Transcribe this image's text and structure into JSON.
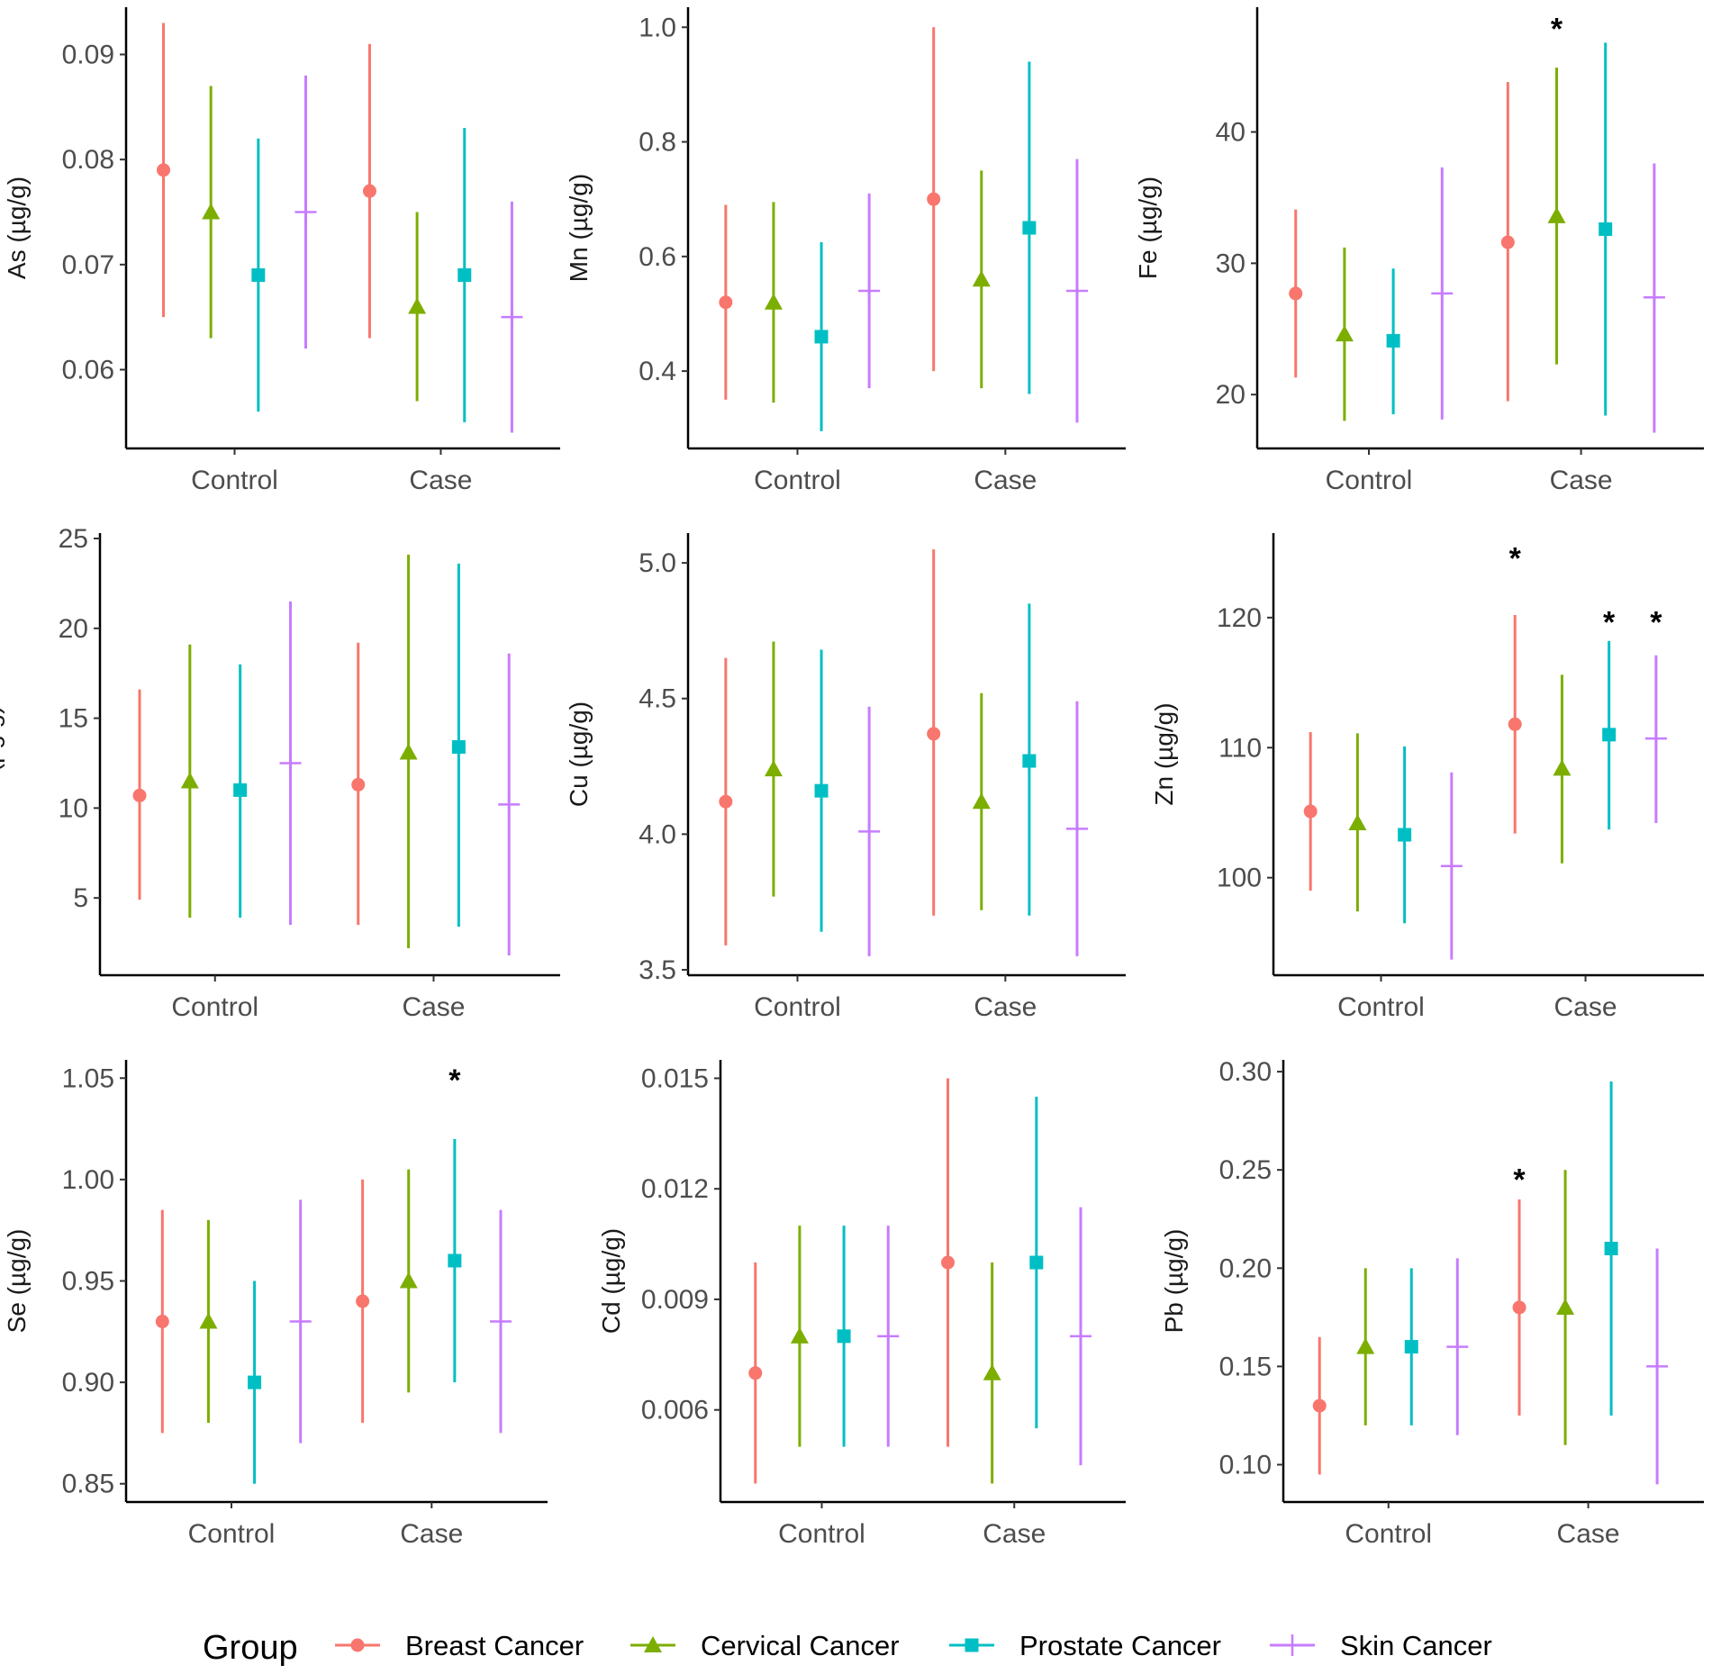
{
  "legend": {
    "title": "Group",
    "entries": [
      {
        "name": "Breast Cancer",
        "color": "#F8766D",
        "shape": "circle"
      },
      {
        "name": "Cervical Cancer",
        "color": "#7CAE00",
        "shape": "triangle"
      },
      {
        "name": "Prostate Cancer",
        "color": "#00BFC4",
        "shape": "square"
      },
      {
        "name": "Skin Cancer",
        "color": "#C77CFF",
        "shape": "plus"
      }
    ]
  },
  "chart_data": [
    {
      "type": "pointrange",
      "ylabel": "As (µg/g)",
      "categories": [
        "Control",
        "Case"
      ],
      "ylim": [
        0.0525,
        0.0945
      ],
      "yticks": [
        "0.06",
        "0.07",
        "0.08",
        "0.09"
      ],
      "ytick_values": [
        0.06,
        0.07,
        0.08,
        0.09
      ],
      "series": [
        {
          "name": "Breast Cancer",
          "points": [
            {
              "mean": 0.079,
              "low": 0.065,
              "high": 0.093
            },
            {
              "mean": 0.077,
              "low": 0.063,
              "high": 0.091
            }
          ]
        },
        {
          "name": "Cervical Cancer",
          "points": [
            {
              "mean": 0.075,
              "low": 0.063,
              "high": 0.087
            },
            {
              "mean": 0.066,
              "low": 0.057,
              "high": 0.075
            }
          ]
        },
        {
          "name": "Prostate Cancer",
          "points": [
            {
              "mean": 0.069,
              "low": 0.056,
              "high": 0.082
            },
            {
              "mean": 0.069,
              "low": 0.055,
              "high": 0.083
            }
          ]
        },
        {
          "name": "Skin Cancer",
          "points": [
            {
              "mean": 0.075,
              "low": 0.062,
              "high": 0.088
            },
            {
              "mean": 0.065,
              "low": 0.054,
              "high": 0.076
            }
          ]
        }
      ],
      "annotations": []
    },
    {
      "type": "pointrange",
      "ylabel": "Mn (µg/g)",
      "categories": [
        "Control",
        "Case"
      ],
      "ylim": [
        0.265,
        1.035
      ],
      "yticks": [
        "0.4",
        "0.6",
        "0.8",
        "1.0"
      ],
      "ytick_values": [
        0.4,
        0.6,
        0.8,
        1.0
      ],
      "series": [
        {
          "name": "Breast Cancer",
          "points": [
            {
              "mean": 0.52,
              "low": 0.35,
              "high": 0.69
            },
            {
              "mean": 0.7,
              "low": 0.4,
              "high": 1.0
            }
          ]
        },
        {
          "name": "Cervical Cancer",
          "points": [
            {
              "mean": 0.52,
              "low": 0.345,
              "high": 0.695
            },
            {
              "mean": 0.56,
              "low": 0.37,
              "high": 0.75
            }
          ]
        },
        {
          "name": "Prostate Cancer",
          "points": [
            {
              "mean": 0.46,
              "low": 0.295,
              "high": 0.625
            },
            {
              "mean": 0.65,
              "low": 0.36,
              "high": 0.94
            }
          ]
        },
        {
          "name": "Skin Cancer",
          "points": [
            {
              "mean": 0.54,
              "low": 0.37,
              "high": 0.71
            },
            {
              "mean": 0.54,
              "low": 0.31,
              "high": 0.77
            }
          ]
        }
      ],
      "annotations": []
    },
    {
      "type": "pointrange",
      "ylabel": "Fe (µg/g)",
      "categories": [
        "Control",
        "Case"
      ],
      "ylim": [
        15.9,
        49.5
      ],
      "yticks": [
        "20",
        "30",
        "40"
      ],
      "ytick_values": [
        20,
        30,
        40
      ],
      "series": [
        {
          "name": "Breast Cancer",
          "points": [
            {
              "mean": 27.7,
              "low": 21.3,
              "high": 34.1
            },
            {
              "mean": 31.6,
              "low": 19.5,
              "high": 43.8
            }
          ]
        },
        {
          "name": "Cervical Cancer",
          "points": [
            {
              "mean": 24.6,
              "low": 18.0,
              "high": 31.2
            },
            {
              "mean": 33.6,
              "low": 22.3,
              "high": 44.9
            }
          ]
        },
        {
          "name": "Prostate Cancer",
          "points": [
            {
              "mean": 24.1,
              "low": 18.5,
              "high": 29.6
            },
            {
              "mean": 32.6,
              "low": 18.4,
              "high": 46.8
            }
          ]
        },
        {
          "name": "Skin Cancer",
          "points": [
            {
              "mean": 27.7,
              "low": 18.1,
              "high": 37.3
            },
            {
              "mean": 27.4,
              "low": 17.1,
              "high": 37.6
            }
          ]
        }
      ],
      "annotations": [
        {
          "text": "*",
          "category": "Case",
          "series": "Cervical Cancer",
          "y": 48.3
        }
      ]
    },
    {
      "type": "pointrange",
      "ylabel": "Ni (µg/g)",
      "categories": [
        "Control",
        "Case"
      ],
      "ylim": [
        0.7,
        25.3
      ],
      "yticks": [
        "5",
        "10",
        "15",
        "20",
        "25"
      ],
      "ytick_values": [
        5,
        10,
        15,
        20,
        25
      ],
      "series": [
        {
          "name": "Breast Cancer",
          "points": [
            {
              "mean": 10.7,
              "low": 4.9,
              "high": 16.6
            },
            {
              "mean": 11.3,
              "low": 3.5,
              "high": 19.2
            }
          ]
        },
        {
          "name": "Cervical Cancer",
          "points": [
            {
              "mean": 11.5,
              "low": 3.9,
              "high": 19.1
            },
            {
              "mean": 13.1,
              "low": 2.2,
              "high": 24.1
            }
          ]
        },
        {
          "name": "Prostate Cancer",
          "points": [
            {
              "mean": 11.0,
              "low": 3.9,
              "high": 18.0
            },
            {
              "mean": 13.4,
              "low": 3.4,
              "high": 23.6
            }
          ]
        },
        {
          "name": "Skin Cancer",
          "points": [
            {
              "mean": 12.5,
              "low": 3.5,
              "high": 21.5
            },
            {
              "mean": 10.2,
              "low": 1.8,
              "high": 18.6
            }
          ]
        }
      ],
      "annotations": []
    },
    {
      "type": "pointrange",
      "ylabel": "Cu (µg/g)",
      "categories": [
        "Control",
        "Case"
      ],
      "ylim": [
        3.48,
        5.11
      ],
      "yticks": [
        "3.5",
        "4.0",
        "4.5",
        "5.0"
      ],
      "ytick_values": [
        3.5,
        4.0,
        4.5,
        5.0
      ],
      "series": [
        {
          "name": "Breast Cancer",
          "points": [
            {
              "mean": 4.12,
              "low": 3.59,
              "high": 4.65
            },
            {
              "mean": 4.37,
              "low": 3.7,
              "high": 5.05
            }
          ]
        },
        {
          "name": "Cervical Cancer",
          "points": [
            {
              "mean": 4.24,
              "low": 3.77,
              "high": 4.71
            },
            {
              "mean": 4.12,
              "low": 3.72,
              "high": 4.52
            }
          ]
        },
        {
          "name": "Prostate Cancer",
          "points": [
            {
              "mean": 4.16,
              "low": 3.64,
              "high": 4.68
            },
            {
              "mean": 4.27,
              "low": 3.7,
              "high": 4.85
            }
          ]
        },
        {
          "name": "Skin Cancer",
          "points": [
            {
              "mean": 4.01,
              "low": 3.55,
              "high": 4.47
            },
            {
              "mean": 4.02,
              "low": 3.55,
              "high": 4.49
            }
          ]
        }
      ],
      "annotations": []
    },
    {
      "type": "pointrange",
      "ylabel": "Zn (µg/g)",
      "categories": [
        "Control",
        "Case"
      ],
      "ylim": [
        92.5,
        126.5
      ],
      "yticks": [
        "100",
        "110",
        "120"
      ],
      "ytick_values": [
        100,
        110,
        120
      ],
      "series": [
        {
          "name": "Breast Cancer",
          "points": [
            {
              "mean": 105.1,
              "low": 99.0,
              "high": 111.2
            },
            {
              "mean": 111.8,
              "low": 103.4,
              "high": 120.2
            }
          ]
        },
        {
          "name": "Cervical Cancer",
          "points": [
            {
              "mean": 104.2,
              "low": 97.4,
              "high": 111.1
            },
            {
              "mean": 108.4,
              "low": 101.1,
              "high": 115.6
            }
          ]
        },
        {
          "name": "Prostate Cancer",
          "points": [
            {
              "mean": 103.3,
              "low": 96.5,
              "high": 110.1
            },
            {
              "mean": 111.0,
              "low": 103.7,
              "high": 118.2
            }
          ]
        },
        {
          "name": "Skin Cancer",
          "points": [
            {
              "mean": 100.9,
              "low": 93.7,
              "high": 108.1
            },
            {
              "mean": 110.7,
              "low": 104.2,
              "high": 117.1
            }
          ]
        }
      ],
      "annotations": [
        {
          "text": "*",
          "category": "Case",
          "series": "Breast Cancer",
          "y": 125.0
        },
        {
          "text": "*",
          "category": "Case",
          "series": "Prostate Cancer",
          "y": 120.1
        },
        {
          "text": "*",
          "category": "Case",
          "series": "Skin Cancer",
          "y": 120.1
        }
      ]
    },
    {
      "type": "pointrange",
      "ylabel": "Se (µg/g)",
      "categories": [
        "Control",
        "Case"
      ],
      "ylim": [
        0.841,
        1.059
      ],
      "yticks": [
        "0.85",
        "0.90",
        "0.95",
        "1.00",
        "1.05"
      ],
      "ytick_values": [
        0.85,
        0.9,
        0.95,
        1.0,
        1.05
      ],
      "series": [
        {
          "name": "Breast Cancer",
          "points": [
            {
              "mean": 0.93,
              "low": 0.875,
              "high": 0.985
            },
            {
              "mean": 0.94,
              "low": 0.88,
              "high": 1.0
            }
          ]
        },
        {
          "name": "Cervical Cancer",
          "points": [
            {
              "mean": 0.93,
              "low": 0.88,
              "high": 0.98
            },
            {
              "mean": 0.95,
              "low": 0.895,
              "high": 1.005
            }
          ]
        },
        {
          "name": "Prostate Cancer",
          "points": [
            {
              "mean": 0.9,
              "low": 0.85,
              "high": 0.95
            },
            {
              "mean": 0.96,
              "low": 0.9,
              "high": 1.02
            }
          ]
        },
        {
          "name": "Skin Cancer",
          "points": [
            {
              "mean": 0.93,
              "low": 0.87,
              "high": 0.99
            },
            {
              "mean": 0.93,
              "low": 0.875,
              "high": 0.985
            }
          ]
        }
      ],
      "annotations": [
        {
          "text": "*",
          "category": "Case",
          "series": "Prostate Cancer",
          "y": 1.052
        }
      ]
    },
    {
      "type": "pointrange",
      "ylabel": "Cd (µg/g)",
      "categories": [
        "Control",
        "Case"
      ],
      "ylim": [
        0.0035,
        0.0155
      ],
      "yticks": [
        "0.006",
        "0.009",
        "0.012",
        "0.015"
      ],
      "ytick_values": [
        0.006,
        0.009,
        0.012,
        0.015
      ],
      "series": [
        {
          "name": "Breast Cancer",
          "points": [
            {
              "mean": 0.007,
              "low": 0.004,
              "high": 0.01
            },
            {
              "mean": 0.01,
              "low": 0.005,
              "high": 0.015
            }
          ]
        },
        {
          "name": "Cervical Cancer",
          "points": [
            {
              "mean": 0.008,
              "low": 0.005,
              "high": 0.011
            },
            {
              "mean": 0.007,
              "low": 0.004,
              "high": 0.01
            }
          ]
        },
        {
          "name": "Prostate Cancer",
          "points": [
            {
              "mean": 0.008,
              "low": 0.005,
              "high": 0.011
            },
            {
              "mean": 0.01,
              "low": 0.0055,
              "high": 0.0145
            }
          ]
        },
        {
          "name": "Skin Cancer",
          "points": [
            {
              "mean": 0.008,
              "low": 0.005,
              "high": 0.011
            },
            {
              "mean": 0.008,
              "low": 0.0045,
              "high": 0.0115
            }
          ]
        }
      ],
      "annotations": []
    },
    {
      "type": "pointrange",
      "ylabel": "Pb (µg/g)",
      "categories": [
        "Control",
        "Case"
      ],
      "ylim": [
        0.081,
        0.306
      ],
      "yticks": [
        "0.10",
        "0.15",
        "0.20",
        "0.25",
        "0.30"
      ],
      "ytick_values": [
        0.1,
        0.15,
        0.2,
        0.25,
        0.3
      ],
      "series": [
        {
          "name": "Breast Cancer",
          "points": [
            {
              "mean": 0.13,
              "low": 0.095,
              "high": 0.165
            },
            {
              "mean": 0.18,
              "low": 0.125,
              "high": 0.235
            }
          ]
        },
        {
          "name": "Cervical Cancer",
          "points": [
            {
              "mean": 0.16,
              "low": 0.12,
              "high": 0.2
            },
            {
              "mean": 0.18,
              "low": 0.11,
              "high": 0.25
            }
          ]
        },
        {
          "name": "Prostate Cancer",
          "points": [
            {
              "mean": 0.16,
              "low": 0.12,
              "high": 0.2
            },
            {
              "mean": 0.21,
              "low": 0.125,
              "high": 0.295
            }
          ]
        },
        {
          "name": "Skin Cancer",
          "points": [
            {
              "mean": 0.16,
              "low": 0.115,
              "high": 0.205
            },
            {
              "mean": 0.15,
              "low": 0.09,
              "high": 0.21
            }
          ]
        }
      ],
      "annotations": [
        {
          "text": "*",
          "category": "Case",
          "series": "Breast Cancer",
          "y": 0.248
        }
      ]
    }
  ]
}
